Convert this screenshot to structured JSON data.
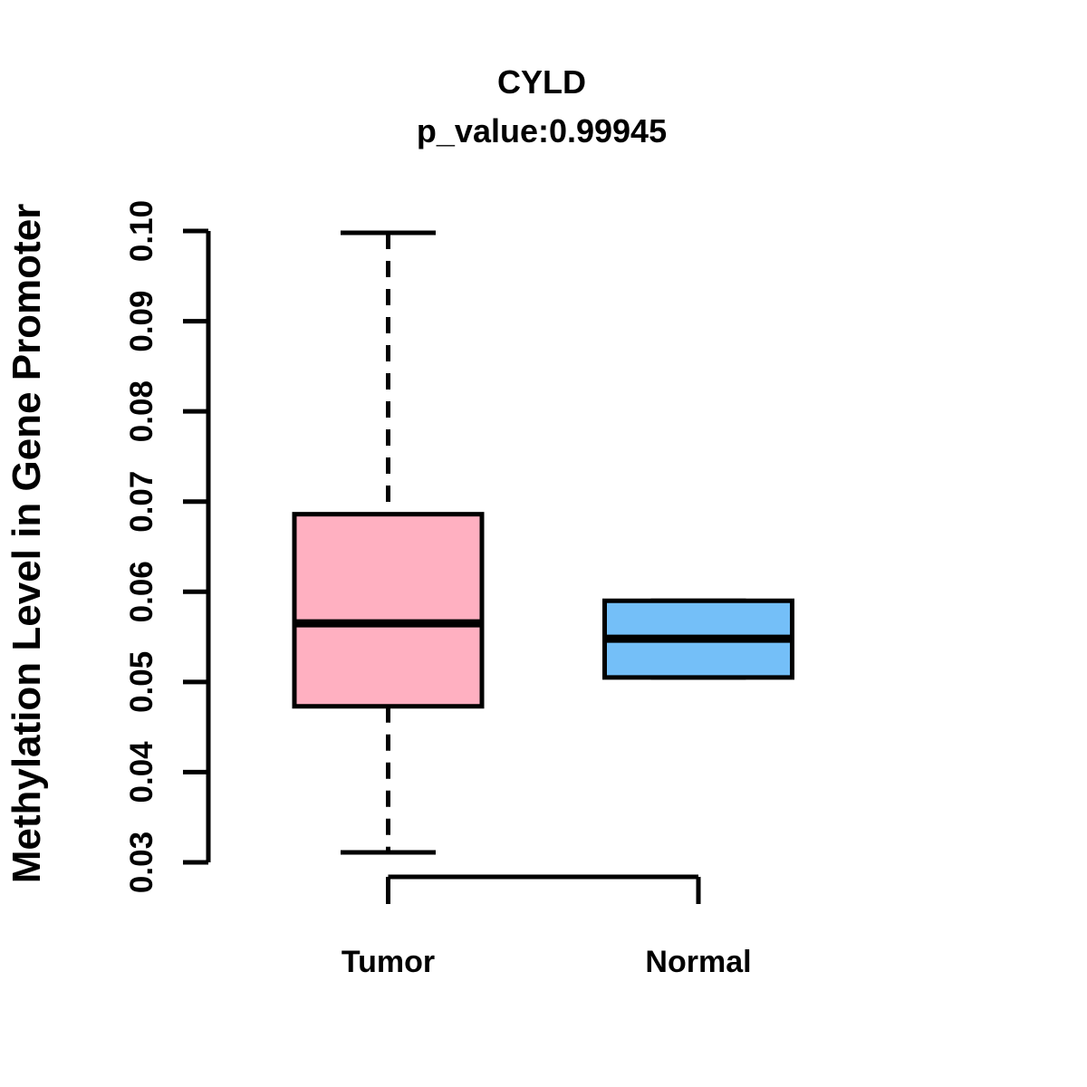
{
  "figure": {
    "title": "CYLD",
    "subtitle": "p_value:0.99945"
  },
  "colors": {
    "background": "#FFFFFF",
    "stroke": "#000000",
    "tumor_fill": "#FFB0C1",
    "normal_fill": "#74BFF8"
  },
  "chart_data": {
    "type": "boxplot",
    "title": "CYLD",
    "subtitle": "p_value:0.99945",
    "xlabel": "",
    "ylabel": "Methylation Level in Gene Promoter",
    "ylim": [
      0.03,
      0.1
    ],
    "yticks": [
      0.03,
      0.04,
      0.05,
      0.06,
      0.07,
      0.08,
      0.09,
      0.1
    ],
    "ytick_labels": [
      "0.03",
      "0.04",
      "0.05",
      "0.06",
      "0.07",
      "0.08",
      "0.09",
      "0.10"
    ],
    "grid": false,
    "legend": "none",
    "categories": [
      "Tumor",
      "Normal"
    ],
    "series": [
      {
        "name": "Tumor",
        "box_color": "#FFB0C1",
        "lower_whisker": 0.0311,
        "q1": 0.0473,
        "median": 0.0565,
        "q3": 0.0686,
        "upper_whisker": 0.0998,
        "outliers": []
      },
      {
        "name": "Normal",
        "box_color": "#74BFF8",
        "lower_whisker": 0.0505,
        "q1": 0.0505,
        "median": 0.0548,
        "q3": 0.059,
        "upper_whisker": 0.059,
        "outliers": []
      }
    ]
  }
}
